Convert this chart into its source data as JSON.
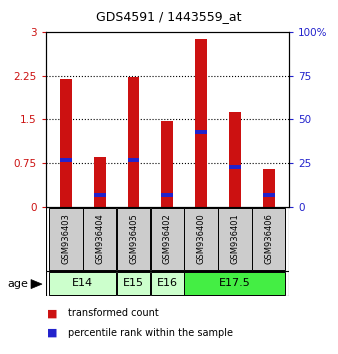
{
  "title": "GDS4591 / 1443559_at",
  "samples": [
    "GSM936403",
    "GSM936404",
    "GSM936405",
    "GSM936402",
    "GSM936400",
    "GSM936401",
    "GSM936406"
  ],
  "transformed_counts": [
    2.2,
    0.85,
    2.22,
    1.48,
    2.88,
    1.63,
    0.65
  ],
  "percentile_ranks_pct": [
    27,
    7,
    27,
    7,
    43,
    23,
    7
  ],
  "age_groups": [
    {
      "label": "E14",
      "span": [
        0,
        1
      ],
      "color": "#ccffcc"
    },
    {
      "label": "E15",
      "span": [
        2,
        2
      ],
      "color": "#ccffcc"
    },
    {
      "label": "E16",
      "span": [
        3,
        3
      ],
      "color": "#ccffcc"
    },
    {
      "label": "E17.5",
      "span": [
        4,
        6
      ],
      "color": "#44ee44"
    }
  ],
  "ylim_left": [
    0,
    3
  ],
  "ylim_right": [
    0,
    100
  ],
  "yticks_left": [
    0,
    0.75,
    1.5,
    2.25,
    3
  ],
  "yticks_right": [
    0,
    25,
    50,
    75,
    100
  ],
  "bar_color": "#cc1111",
  "percentile_color": "#2222cc",
  "bar_width": 0.35,
  "background_color": "#ffffff",
  "label_area_color": "#cccccc",
  "legend_items": [
    {
      "label": "transformed count",
      "color": "#cc1111"
    },
    {
      "label": "percentile rank within the sample",
      "color": "#2222cc"
    }
  ]
}
